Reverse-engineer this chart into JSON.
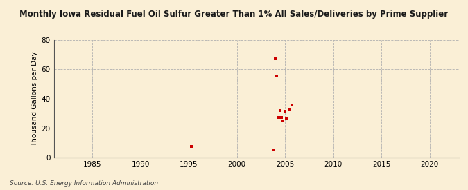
{
  "title": "Monthly Iowa Residual Fuel Oil Sulfur Greater Than 1% All Sales/Deliveries by Prime Supplier",
  "ylabel": "Thousand Gallons per Day",
  "source": "Source: U.S. Energy Information Administration",
  "background_color": "#faefd6",
  "scatter_color": "#cc0000",
  "xlim": [
    1981,
    2023
  ],
  "ylim": [
    0,
    80
  ],
  "xticks": [
    1985,
    1990,
    1995,
    2000,
    2005,
    2010,
    2015,
    2020
  ],
  "yticks": [
    0,
    20,
    40,
    60,
    80
  ],
  "data_x": [
    1995.25,
    2003.75,
    2004.0,
    2004.1,
    2004.3,
    2004.5,
    2004.6,
    2004.8,
    2005.0,
    2005.1,
    2005.5,
    2005.7
  ],
  "data_y": [
    7.5,
    5.5,
    67.0,
    55.5,
    27.5,
    32.0,
    27.5,
    25.0,
    31.5,
    27.0,
    32.5,
    36.0
  ]
}
